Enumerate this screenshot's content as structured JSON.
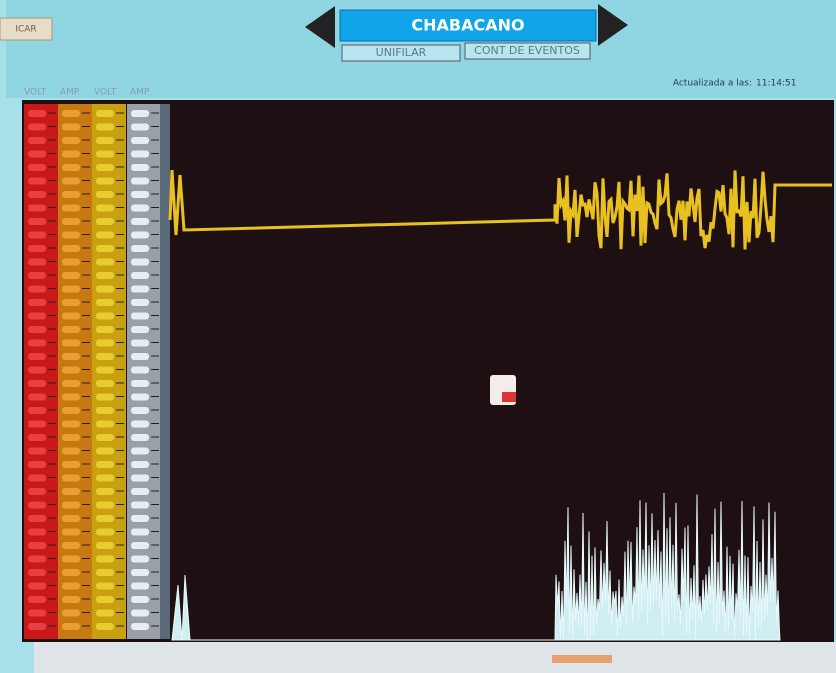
{
  "header": {
    "tab_label": "ICAR",
    "title": "CHABACANO",
    "buttons": [
      "UNIFILAR",
      "CONT DE EVENTOS"
    ]
  },
  "panel": {
    "column_labels": [
      "VOLT",
      "AMP",
      "VOLT",
      "AMP"
    ]
  },
  "status": {
    "label": "Actualizada a las:",
    "time": "11:14:51"
  }
}
